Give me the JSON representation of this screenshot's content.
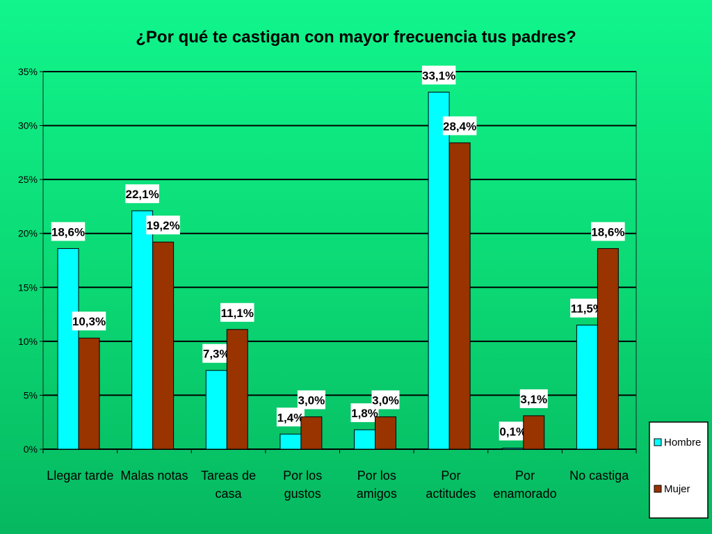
{
  "chart_data": {
    "type": "bar",
    "title": "¿Por qué te castigan con mayor frecuencia tus padres?",
    "categories": [
      [
        "Llegar tarde"
      ],
      [
        "Malas notas"
      ],
      [
        "Tareas de",
        "casa"
      ],
      [
        "Por los",
        "gustos"
      ],
      [
        "Por los",
        "amigos"
      ],
      [
        "Por",
        "actitudes"
      ],
      [
        "Por",
        "enamorado"
      ],
      [
        "No castiga"
      ]
    ],
    "series": [
      {
        "name": "Hombre",
        "color": "#00ffff",
        "values": [
          18.6,
          22.1,
          7.3,
          1.4,
          1.8,
          33.1,
          0.1,
          11.5
        ],
        "labels": [
          "18,6%",
          "22,1%",
          "7,3%",
          "1,4%",
          "1,8%",
          "33,1%",
          "0,1%",
          "11,5%"
        ]
      },
      {
        "name": "Mujer",
        "color": "#993300",
        "values": [
          10.3,
          19.2,
          11.1,
          3.0,
          3.0,
          28.4,
          3.1,
          18.6
        ],
        "labels": [
          "10,3%",
          "19,2%",
          "11,1%",
          "3,0%",
          "3,0%",
          "28,4%",
          "3,1%",
          "18,6%"
        ]
      }
    ],
    "ylim": [
      0,
      35
    ],
    "yticks": [
      0,
      5,
      10,
      15,
      20,
      25,
      30,
      35
    ],
    "ytick_labels": [
      "0%",
      "5%",
      "10%",
      "15%",
      "20%",
      "25%",
      "30%",
      "35%"
    ],
    "grid": true,
    "legend_position": "bottom-right"
  }
}
